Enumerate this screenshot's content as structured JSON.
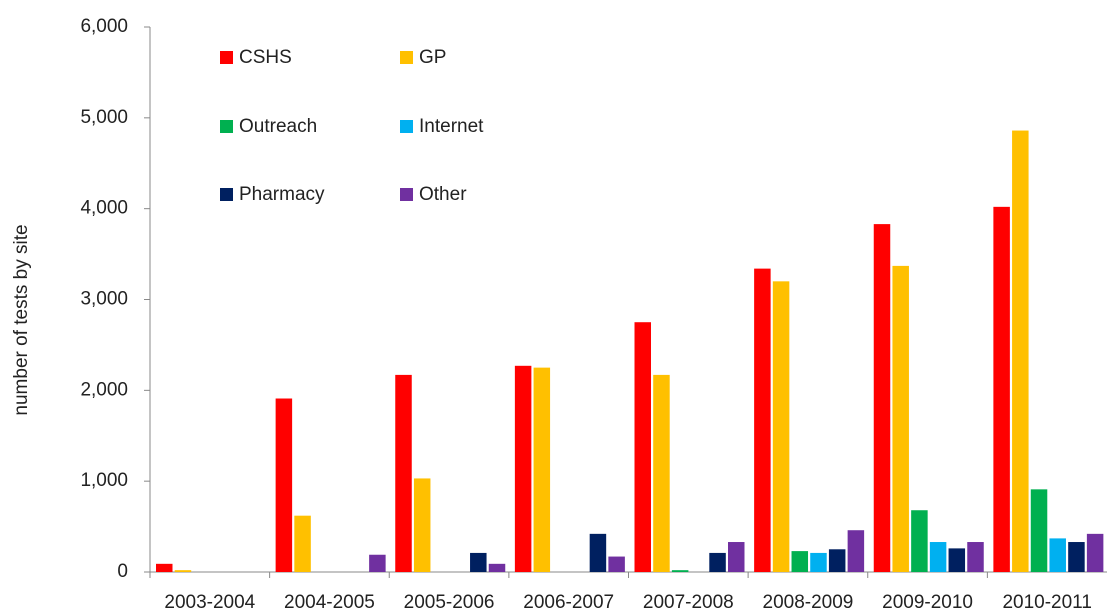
{
  "chart_data": {
    "type": "bar",
    "y_label": "number of tests by site",
    "categories": [
      "2003-2004",
      "2004-2005",
      "2005-2006",
      "2006-2007",
      "2007-2008",
      "2008-2009",
      "2009-2010",
      "2010-2011"
    ],
    "series": [
      {
        "name": "CSHS",
        "color": "#ff0000",
        "values": [
          90,
          1910,
          2170,
          2270,
          2750,
          3340,
          3830,
          4020
        ]
      },
      {
        "name": "GP",
        "color": "#ffc000",
        "values": [
          20,
          620,
          1030,
          2250,
          2170,
          3200,
          3370,
          4860
        ]
      },
      {
        "name": "Outreach",
        "color": "#00b050",
        "values": [
          0,
          0,
          0,
          0,
          20,
          230,
          680,
          910
        ]
      },
      {
        "name": "Internet",
        "color": "#00b0f0",
        "values": [
          0,
          0,
          0,
          0,
          0,
          210,
          330,
          370
        ]
      },
      {
        "name": "Pharmacy",
        "color": "#002060",
        "values": [
          0,
          0,
          210,
          420,
          210,
          250,
          260,
          330
        ]
      },
      {
        "name": "Other",
        "color": "#7030a0",
        "values": [
          0,
          190,
          90,
          170,
          330,
          460,
          330,
          420
        ]
      }
    ],
    "ylim": [
      0,
      6000
    ],
    "yticks": [
      0,
      {
        "value": 1000,
        "label": "1,000"
      },
      {
        "value": 2000,
        "label": "2,000"
      },
      {
        "value": 3000,
        "label": "3,000"
      },
      {
        "value": 4000,
        "label": "4,000"
      },
      {
        "value": 5000,
        "label": "5,000"
      },
      {
        "value": 6000,
        "label": "6,000"
      }
    ],
    "grid": false
  }
}
